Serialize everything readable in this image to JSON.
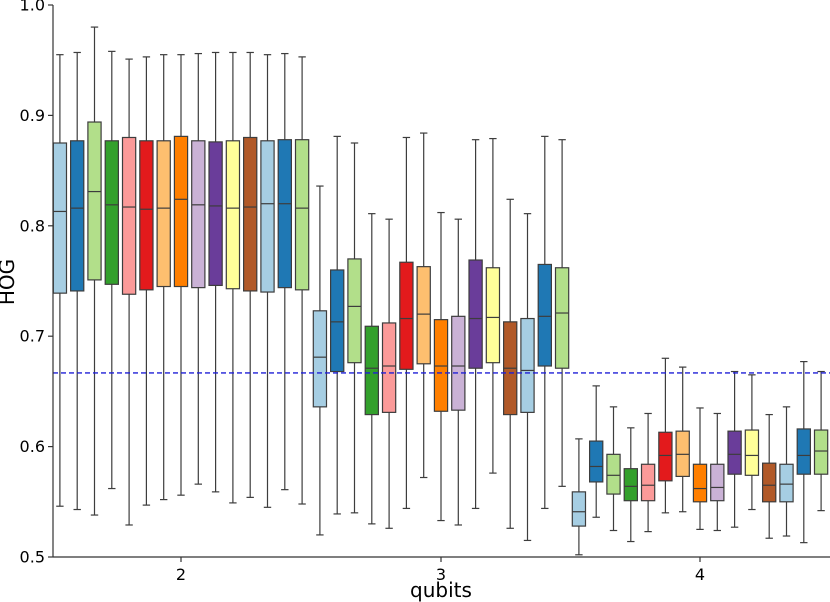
{
  "chart_data": {
    "type": "box",
    "title": "",
    "xlabel": "qubits",
    "ylabel": "HOG",
    "ylim": [
      0.5,
      1.0
    ],
    "yticks": [
      "0.5",
      "0.6",
      "0.7",
      "0.8",
      "0.9",
      "1.0"
    ],
    "categories": [
      "2",
      "3",
      "4"
    ],
    "reference_line": {
      "y": 0.6667,
      "style": "dashed",
      "color": "#1f1fd6"
    },
    "grid": false,
    "legend": "none",
    "palette": [
      "#a6cee3",
      "#1f78b4",
      "#b2df8a",
      "#33a02c",
      "#fb9a99",
      "#e31a1c",
      "#fdbf6f",
      "#ff7f00",
      "#cab2d6",
      "#6a3d9a",
      "#ffff99",
      "#b15928"
    ],
    "groups": [
      {
        "category": "2",
        "boxes": [
          {
            "color": "#a6cee3",
            "whislo": 0.546,
            "q1": 0.739,
            "med": 0.813,
            "q3": 0.875,
            "whishi": 0.955
          },
          {
            "color": "#1f78b4",
            "whislo": 0.543,
            "q1": 0.741,
            "med": 0.816,
            "q3": 0.877,
            "whishi": 0.957
          },
          {
            "color": "#b2df8a",
            "whislo": 0.538,
            "q1": 0.751,
            "med": 0.831,
            "q3": 0.894,
            "whishi": 0.98
          },
          {
            "color": "#33a02c",
            "whislo": 0.562,
            "q1": 0.747,
            "med": 0.819,
            "q3": 0.877,
            "whishi": 0.958
          },
          {
            "color": "#fb9a99",
            "whislo": 0.529,
            "q1": 0.738,
            "med": 0.817,
            "q3": 0.88,
            "whishi": 0.951
          },
          {
            "color": "#e31a1c",
            "whislo": 0.547,
            "q1": 0.742,
            "med": 0.815,
            "q3": 0.877,
            "whishi": 0.953
          },
          {
            "color": "#fdbf6f",
            "whislo": 0.552,
            "q1": 0.745,
            "med": 0.816,
            "q3": 0.877,
            "whishi": 0.955
          },
          {
            "color": "#ff7f00",
            "whislo": 0.556,
            "q1": 0.745,
            "med": 0.824,
            "q3": 0.881,
            "whishi": 0.955
          },
          {
            "color": "#cab2d6",
            "whislo": 0.566,
            "q1": 0.744,
            "med": 0.819,
            "q3": 0.877,
            "whishi": 0.956
          },
          {
            "color": "#6a3d9a",
            "whislo": 0.559,
            "q1": 0.746,
            "med": 0.818,
            "q3": 0.876,
            "whishi": 0.957
          },
          {
            "color": "#ffff99",
            "whislo": 0.549,
            "q1": 0.743,
            "med": 0.816,
            "q3": 0.877,
            "whishi": 0.957
          },
          {
            "color": "#b15928",
            "whislo": 0.554,
            "q1": 0.741,
            "med": 0.817,
            "q3": 0.88,
            "whishi": 0.957
          },
          {
            "color": "#a6cee3",
            "whislo": 0.545,
            "q1": 0.74,
            "med": 0.82,
            "q3": 0.877,
            "whishi": 0.955
          },
          {
            "color": "#1f78b4",
            "whislo": 0.561,
            "q1": 0.744,
            "med": 0.82,
            "q3": 0.878,
            "whishi": 0.956
          },
          {
            "color": "#b2df8a",
            "whislo": 0.548,
            "q1": 0.742,
            "med": 0.816,
            "q3": 0.878,
            "whishi": 0.953
          }
        ]
      },
      {
        "category": "3",
        "boxes": [
          {
            "color": "#a6cee3",
            "whislo": 0.52,
            "q1": 0.636,
            "med": 0.681,
            "q3": 0.723,
            "whishi": 0.836
          },
          {
            "color": "#1f78b4",
            "whislo": 0.539,
            "q1": 0.668,
            "med": 0.713,
            "q3": 0.76,
            "whishi": 0.881
          },
          {
            "color": "#b2df8a",
            "whislo": 0.54,
            "q1": 0.676,
            "med": 0.727,
            "q3": 0.77,
            "whishi": 0.875
          },
          {
            "color": "#33a02c",
            "whislo": 0.53,
            "q1": 0.629,
            "med": 0.671,
            "q3": 0.709,
            "whishi": 0.811
          },
          {
            "color": "#fb9a99",
            "whislo": 0.526,
            "q1": 0.631,
            "med": 0.673,
            "q3": 0.712,
            "whishi": 0.806
          },
          {
            "color": "#e31a1c",
            "whislo": 0.544,
            "q1": 0.67,
            "med": 0.716,
            "q3": 0.767,
            "whishi": 0.88
          },
          {
            "color": "#fdbf6f",
            "whislo": 0.572,
            "q1": 0.675,
            "med": 0.72,
            "q3": 0.763,
            "whishi": 0.884
          },
          {
            "color": "#ff7f00",
            "whislo": 0.533,
            "q1": 0.632,
            "med": 0.673,
            "q3": 0.715,
            "whishi": 0.812
          },
          {
            "color": "#cab2d6",
            "whislo": 0.529,
            "q1": 0.633,
            "med": 0.673,
            "q3": 0.718,
            "whishi": 0.806
          },
          {
            "color": "#6a3d9a",
            "whislo": 0.544,
            "q1": 0.671,
            "med": 0.716,
            "q3": 0.769,
            "whishi": 0.878
          },
          {
            "color": "#ffff99",
            "whislo": 0.576,
            "q1": 0.676,
            "med": 0.717,
            "q3": 0.762,
            "whishi": 0.879
          },
          {
            "color": "#b15928",
            "whislo": 0.526,
            "q1": 0.629,
            "med": 0.671,
            "q3": 0.713,
            "whishi": 0.824
          },
          {
            "color": "#a6cee3",
            "whislo": 0.515,
            "q1": 0.631,
            "med": 0.669,
            "q3": 0.716,
            "whishi": 0.811
          },
          {
            "color": "#1f78b4",
            "whislo": 0.544,
            "q1": 0.673,
            "med": 0.718,
            "q3": 0.765,
            "whishi": 0.881
          },
          {
            "color": "#b2df8a",
            "whislo": 0.564,
            "q1": 0.671,
            "med": 0.721,
            "q3": 0.762,
            "whishi": 0.878
          }
        ]
      },
      {
        "category": "4",
        "boxes": [
          {
            "color": "#a6cee3",
            "whislo": 0.502,
            "q1": 0.528,
            "med": 0.541,
            "q3": 0.559,
            "whishi": 0.607
          },
          {
            "color": "#1f78b4",
            "whislo": 0.536,
            "q1": 0.568,
            "med": 0.582,
            "q3": 0.605,
            "whishi": 0.655
          },
          {
            "color": "#b2df8a",
            "whislo": 0.524,
            "q1": 0.557,
            "med": 0.574,
            "q3": 0.593,
            "whishi": 0.636
          },
          {
            "color": "#33a02c",
            "whislo": 0.514,
            "q1": 0.551,
            "med": 0.564,
            "q3": 0.58,
            "whishi": 0.617
          },
          {
            "color": "#fb9a99",
            "whislo": 0.523,
            "q1": 0.551,
            "med": 0.565,
            "q3": 0.584,
            "whishi": 0.63
          },
          {
            "color": "#e31a1c",
            "whislo": 0.54,
            "q1": 0.569,
            "med": 0.592,
            "q3": 0.613,
            "whishi": 0.68
          },
          {
            "color": "#fdbf6f",
            "whislo": 0.541,
            "q1": 0.573,
            "med": 0.593,
            "q3": 0.614,
            "whishi": 0.672
          },
          {
            "color": "#ff7f00",
            "whislo": 0.525,
            "q1": 0.55,
            "med": 0.562,
            "q3": 0.584,
            "whishi": 0.635
          },
          {
            "color": "#cab2d6",
            "whislo": 0.524,
            "q1": 0.551,
            "med": 0.563,
            "q3": 0.584,
            "whishi": 0.63
          },
          {
            "color": "#6a3d9a",
            "whislo": 0.527,
            "q1": 0.575,
            "med": 0.593,
            "q3": 0.614,
            "whishi": 0.668
          },
          {
            "color": "#ffff99",
            "whislo": 0.543,
            "q1": 0.574,
            "med": 0.592,
            "q3": 0.615,
            "whishi": 0.665
          },
          {
            "color": "#b15928",
            "whislo": 0.517,
            "q1": 0.55,
            "med": 0.565,
            "q3": 0.585,
            "whishi": 0.629
          },
          {
            "color": "#a6cee3",
            "whislo": 0.519,
            "q1": 0.55,
            "med": 0.566,
            "q3": 0.584,
            "whishi": 0.636
          },
          {
            "color": "#1f78b4",
            "whislo": 0.513,
            "q1": 0.575,
            "med": 0.592,
            "q3": 0.616,
            "whishi": 0.677
          },
          {
            "color": "#b2df8a",
            "whislo": 0.542,
            "q1": 0.575,
            "med": 0.596,
            "q3": 0.615,
            "whishi": 0.668
          }
        ]
      }
    ]
  }
}
